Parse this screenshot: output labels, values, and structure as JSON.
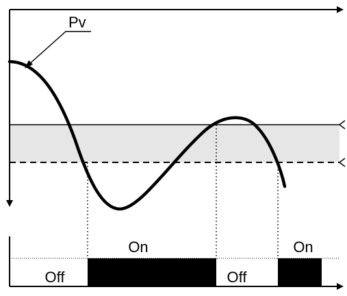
{
  "pv_label": "Pv",
  "output_labels": {
    "on_1": "On",
    "off_1": "Off",
    "off_2": "Off",
    "on_2": "On"
  },
  "colors": {
    "ink": "#000000",
    "band_fill": "#e6e6e6",
    "background": "#ffffff"
  }
}
